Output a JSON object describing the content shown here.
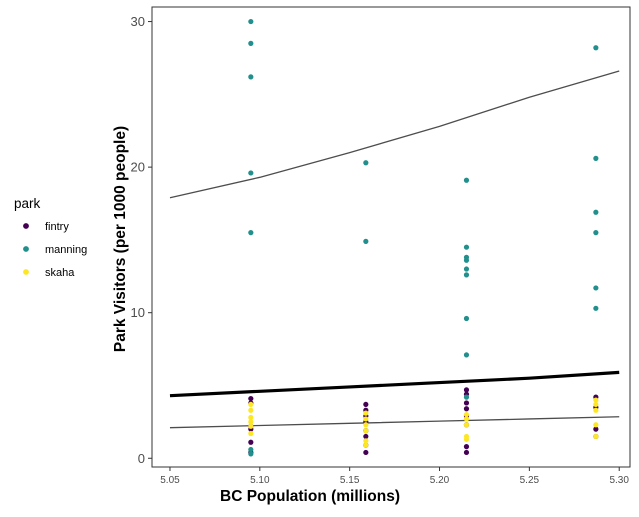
{
  "chart_data": {
    "type": "scatter",
    "xlabel": "BC Population (millions)",
    "ylabel": "Park Visitors (per 1000 people)",
    "xlim": [
      5.04,
      5.306
    ],
    "ylim": [
      -0.6,
      31.0
    ],
    "x_ticks": [
      5.05,
      5.1,
      5.15,
      5.2,
      5.25,
      5.3
    ],
    "x_tick_labels": [
      "5.05",
      "5.10",
      "5.15",
      "5.20",
      "5.25",
      "5.30"
    ],
    "y_ticks": [
      0,
      10,
      20,
      30
    ],
    "y_tick_labels": [
      "0",
      "10",
      "20",
      "30"
    ],
    "grid": false,
    "legend": {
      "title": "park",
      "position": "left",
      "entries": [
        "fintry",
        "manning",
        "skaha"
      ]
    },
    "series": [
      {
        "name": "fintry",
        "color": "#440154",
        "points": [
          {
            "x": 5.095,
            "y": 4.1
          },
          {
            "x": 5.095,
            "y": 3.8
          },
          {
            "x": 5.095,
            "y": 2.2
          },
          {
            "x": 5.095,
            "y": 2.0
          },
          {
            "x": 5.095,
            "y": 1.1
          },
          {
            "x": 5.095,
            "y": 0.4
          },
          {
            "x": 5.159,
            "y": 3.7
          },
          {
            "x": 5.159,
            "y": 3.3
          },
          {
            "x": 5.159,
            "y": 2.9
          },
          {
            "x": 5.159,
            "y": 2.5
          },
          {
            "x": 5.159,
            "y": 1.9
          },
          {
            "x": 5.159,
            "y": 1.5
          },
          {
            "x": 5.159,
            "y": 0.9
          },
          {
            "x": 5.159,
            "y": 0.4
          },
          {
            "x": 5.215,
            "y": 4.7
          },
          {
            "x": 5.215,
            "y": 4.4
          },
          {
            "x": 5.215,
            "y": 3.8
          },
          {
            "x": 5.215,
            "y": 3.4
          },
          {
            "x": 5.215,
            "y": 2.9
          },
          {
            "x": 5.215,
            "y": 2.3
          },
          {
            "x": 5.215,
            "y": 0.8
          },
          {
            "x": 5.215,
            "y": 0.4
          },
          {
            "x": 5.287,
            "y": 4.2
          },
          {
            "x": 5.287,
            "y": 3.5
          },
          {
            "x": 5.287,
            "y": 2.0
          },
          {
            "x": 5.287,
            "y": 1.5
          }
        ]
      },
      {
        "name": "manning",
        "color": "#21908C",
        "points": [
          {
            "x": 5.095,
            "y": 30.0
          },
          {
            "x": 5.095,
            "y": 28.5
          },
          {
            "x": 5.095,
            "y": 26.2
          },
          {
            "x": 5.095,
            "y": 19.6
          },
          {
            "x": 5.095,
            "y": 15.5
          },
          {
            "x": 5.095,
            "y": 0.6
          },
          {
            "x": 5.095,
            "y": 0.3
          },
          {
            "x": 5.159,
            "y": 20.3
          },
          {
            "x": 5.159,
            "y": 14.9
          },
          {
            "x": 5.215,
            "y": 19.1
          },
          {
            "x": 5.215,
            "y": 14.5
          },
          {
            "x": 5.215,
            "y": 13.8
          },
          {
            "x": 5.215,
            "y": 13.6
          },
          {
            "x": 5.215,
            "y": 13.0
          },
          {
            "x": 5.215,
            "y": 12.6
          },
          {
            "x": 5.215,
            "y": 9.6
          },
          {
            "x": 5.215,
            "y": 7.1
          },
          {
            "x": 5.215,
            "y": 4.2
          },
          {
            "x": 5.287,
            "y": 28.2
          },
          {
            "x": 5.287,
            "y": 20.6
          },
          {
            "x": 5.287,
            "y": 16.9
          },
          {
            "x": 5.287,
            "y": 15.5
          },
          {
            "x": 5.287,
            "y": 11.7
          },
          {
            "x": 5.287,
            "y": 10.3
          }
        ]
      },
      {
        "name": "skaha",
        "color": "#FDE725",
        "points": [
          {
            "x": 5.095,
            "y": 3.7
          },
          {
            "x": 5.095,
            "y": 3.3
          },
          {
            "x": 5.095,
            "y": 2.8
          },
          {
            "x": 5.095,
            "y": 2.5
          },
          {
            "x": 5.095,
            "y": 2.2
          },
          {
            "x": 5.095,
            "y": 1.7
          },
          {
            "x": 5.159,
            "y": 3.1
          },
          {
            "x": 5.159,
            "y": 2.7
          },
          {
            "x": 5.159,
            "y": 2.3
          },
          {
            "x": 5.159,
            "y": 1.9
          },
          {
            "x": 5.159,
            "y": 1.2
          },
          {
            "x": 5.159,
            "y": 0.9
          },
          {
            "x": 5.215,
            "y": 3.0
          },
          {
            "x": 5.215,
            "y": 2.7
          },
          {
            "x": 5.215,
            "y": 2.3
          },
          {
            "x": 5.215,
            "y": 1.5
          },
          {
            "x": 5.215,
            "y": 1.3
          },
          {
            "x": 5.287,
            "y": 4.0
          },
          {
            "x": 5.287,
            "y": 3.7
          },
          {
            "x": 5.287,
            "y": 3.3
          },
          {
            "x": 5.287,
            "y": 2.3
          },
          {
            "x": 5.287,
            "y": 1.5
          }
        ]
      }
    ],
    "lines": [
      {
        "name": "manning-trend",
        "color": "#4d4d4d",
        "width": 1.3,
        "points": [
          {
            "x": 5.05,
            "y": 17.9
          },
          {
            "x": 5.1,
            "y": 19.3
          },
          {
            "x": 5.15,
            "y": 21.0
          },
          {
            "x": 5.2,
            "y": 22.8
          },
          {
            "x": 5.25,
            "y": 24.8
          },
          {
            "x": 5.3,
            "y": 26.6
          }
        ]
      },
      {
        "name": "overall-trend",
        "color": "#000000",
        "width": 3.2,
        "points": [
          {
            "x": 5.05,
            "y": 4.3
          },
          {
            "x": 5.1,
            "y": 4.6
          },
          {
            "x": 5.15,
            "y": 4.9
          },
          {
            "x": 5.2,
            "y": 5.2
          },
          {
            "x": 5.25,
            "y": 5.5
          },
          {
            "x": 5.3,
            "y": 5.9
          }
        ]
      },
      {
        "name": "lower-trend",
        "color": "#4d4d4d",
        "width": 1.3,
        "points": [
          {
            "x": 5.05,
            "y": 2.1
          },
          {
            "x": 5.1,
            "y": 2.25
          },
          {
            "x": 5.15,
            "y": 2.4
          },
          {
            "x": 5.2,
            "y": 2.55
          },
          {
            "x": 5.25,
            "y": 2.7
          },
          {
            "x": 5.3,
            "y": 2.85
          }
        ]
      }
    ]
  }
}
